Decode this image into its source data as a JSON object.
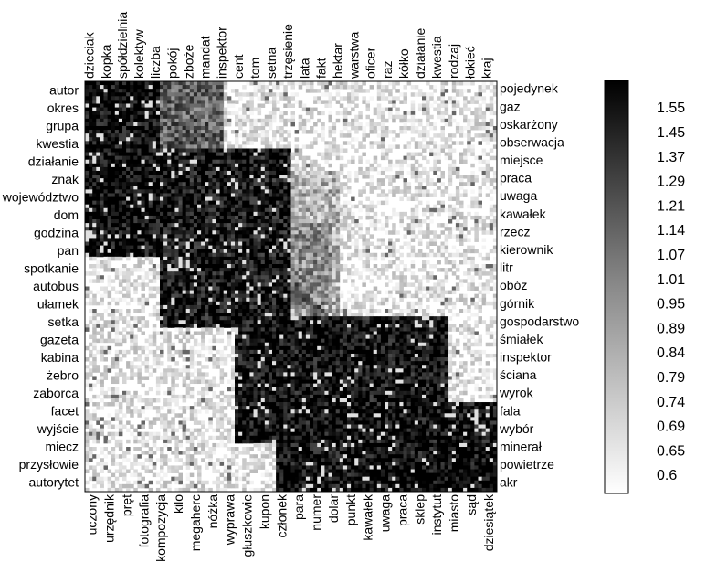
{
  "chart_data": {
    "type": "heatmap",
    "title": "",
    "top_labels": [
      "dzieciak",
      "kopka",
      "spółdzielnia",
      "kolektyw",
      "liczba",
      "pokój",
      "zboże",
      "mandat",
      "inspektor",
      "cent",
      "tom",
      "setna",
      "trzęsienie",
      "lata",
      "fakt",
      "hektar",
      "warstwa",
      "oficer",
      "raz",
      "kółko",
      "działanie",
      "kwestia",
      "rodzaj",
      "łokieć",
      "kraj"
    ],
    "bottom_labels": [
      "uczony",
      "urzędnik",
      "pręt",
      "fotografia",
      "kompozycja",
      "kilo",
      "megaherc",
      "nóżka",
      "wyprawa",
      "głuszkowie",
      "kupon",
      "członek",
      "para",
      "numer",
      "dolar",
      "punkt",
      "kawałek",
      "uwaga",
      "praca",
      "sklep",
      "instytut",
      "miasto",
      "sąd",
      "dziesiątek"
    ],
    "left_labels": [
      "autor",
      "okres",
      "grupa",
      "kwestia",
      "działanie",
      "znak",
      "województwo",
      "dom",
      "godzina",
      "pan",
      "spotkanie",
      "autobus",
      "ułamek",
      "setka",
      "gazeta",
      "kabina",
      "żebro",
      "zaborca",
      "facet",
      "wyjście",
      "miecz",
      "przysłowie",
      "autorytet"
    ],
    "right_labels": [
      "pojedynek",
      "gaz",
      "oskarżony",
      "obserwacja",
      "miejsce",
      "praca",
      "uwaga",
      "kawałek",
      "rzecz",
      "kierownik",
      "litr",
      "obóz",
      "górnik",
      "gospodarstwo",
      "śmiałek",
      "inspektor",
      "ściana",
      "wyrok",
      "fala",
      "wybór",
      "minerał",
      "powietrze",
      "akr"
    ],
    "colorbar": {
      "ticks": [
        "1.55",
        "1.45",
        "1.37",
        "1.29",
        "1.21",
        "1.14",
        "1.07",
        "1.01",
        "0.95",
        "0.89",
        "0.84",
        "0.79",
        "0.74",
        "0.69",
        "0.65",
        "0.6"
      ],
      "min": 0.6,
      "max": 1.6,
      "low_color": "#ffffff",
      "high_color": "#000000"
    },
    "blocks": [
      {
        "x0": 0.0,
        "x1": 0.18,
        "y0": 0.0,
        "y1": 0.43,
        "level": 0.97
      },
      {
        "x0": 0.02,
        "x1": 0.34,
        "y0": 0.0,
        "y1": 0.43,
        "level": 0.62
      },
      {
        "x0": 0.18,
        "x1": 0.5,
        "y0": 0.16,
        "y1": 0.6,
        "level": 0.93
      },
      {
        "x0": 0.3,
        "x1": 0.62,
        "y0": 0.22,
        "y1": 0.57,
        "level": 0.3
      },
      {
        "x0": 0.4,
        "x1": 0.6,
        "y0": 0.35,
        "y1": 0.55,
        "level": 0.45
      },
      {
        "x0": 0.36,
        "x1": 0.88,
        "y0": 0.57,
        "y1": 0.88,
        "level": 0.95
      },
      {
        "x0": 0.46,
        "x1": 1.0,
        "y0": 0.78,
        "y1": 1.0,
        "level": 0.97
      },
      {
        "x0": 0.66,
        "x1": 1.0,
        "y0": 0.93,
        "y1": 1.0,
        "level": 1.0
      }
    ],
    "grid": false,
    "legend": "colorbar-right"
  }
}
